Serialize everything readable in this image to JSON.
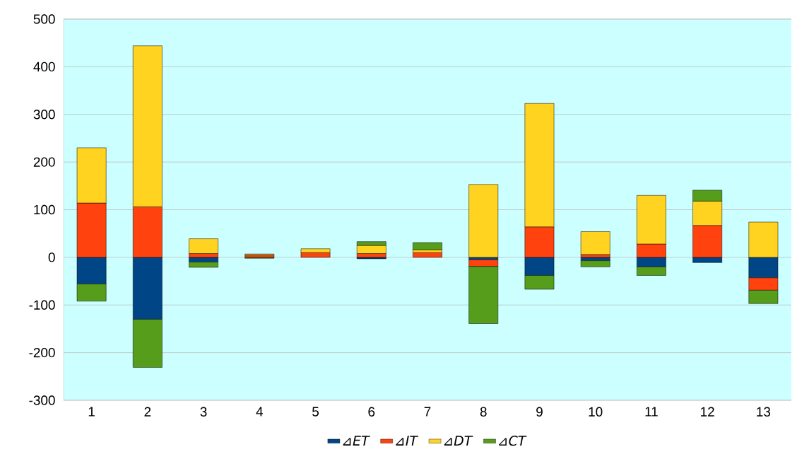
{
  "chart_data": {
    "type": "bar",
    "stacked": true,
    "categories": [
      "1",
      "2",
      "3",
      "4",
      "5",
      "6",
      "7",
      "8",
      "9",
      "10",
      "11",
      "12",
      "13"
    ],
    "series": [
      {
        "name": "⊿ET",
        "color": "#004586",
        "values": [
          -56,
          -130,
          -10,
          null,
          null,
          -3,
          0,
          -5,
          -38,
          -7,
          -20,
          -11,
          -43
        ]
      },
      {
        "name": "⊿IT",
        "color": "#ff420e",
        "values": [
          114,
          106,
          8,
          5,
          10,
          8,
          10,
          -14,
          64,
          6,
          28,
          67,
          -26
        ]
      },
      {
        "name": "⊿DT",
        "color": "#ffd320",
        "values": [
          116,
          338,
          31,
          2,
          8,
          17,
          6,
          153,
          259,
          48,
          102,
          51,
          74
        ]
      },
      {
        "name": "⊿CT",
        "color": "#579d1c",
        "values": [
          -36,
          -101,
          -11,
          -2,
          0,
          8,
          15,
          -120,
          -29,
          -13,
          -18,
          23,
          -28
        ]
      }
    ],
    "ylim": [
      -300,
      500
    ],
    "yticks": [
      -300,
      -200,
      -100,
      0,
      100,
      200,
      300,
      400,
      500
    ],
    "grid": "y",
    "legend": "bottom"
  }
}
